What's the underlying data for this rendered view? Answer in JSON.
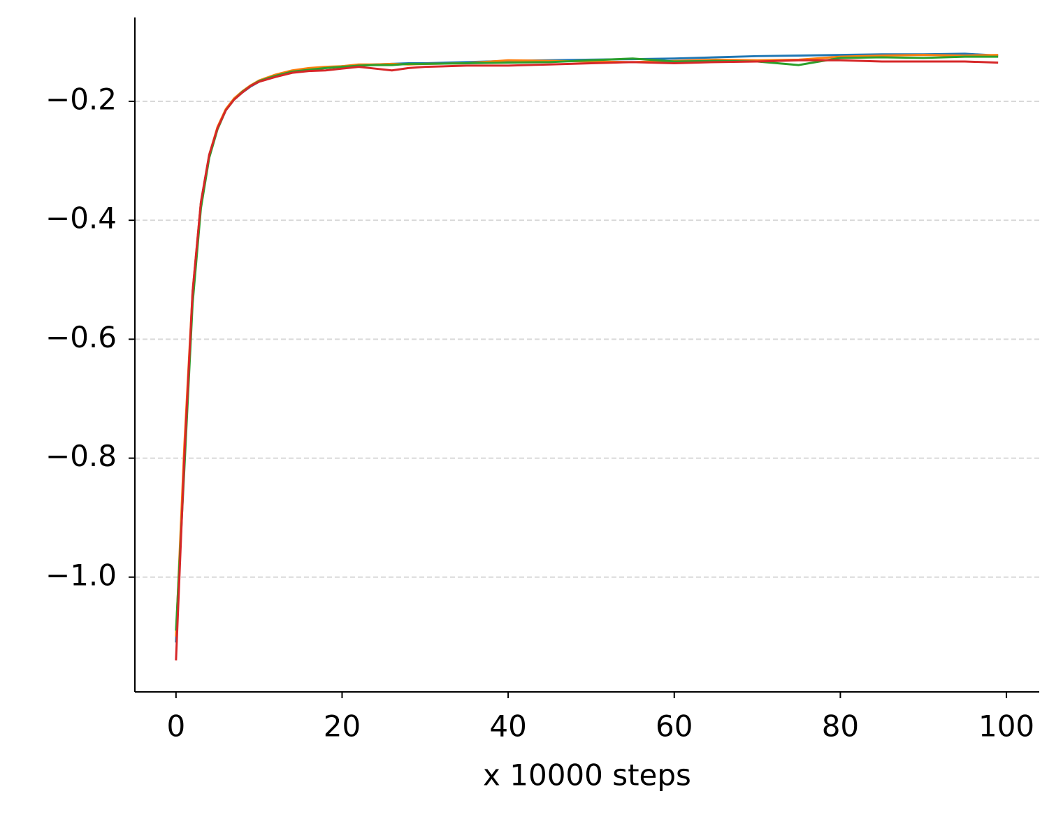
{
  "chart_data": {
    "type": "line",
    "xlabel": "x 10000 steps",
    "x": [
      0,
      1,
      2,
      3,
      4,
      5,
      6,
      7,
      8,
      9,
      10,
      12,
      14,
      16,
      18,
      20,
      22,
      24,
      26,
      28,
      30,
      35,
      40,
      45,
      50,
      55,
      60,
      65,
      70,
      75,
      80,
      85,
      90,
      95,
      99
    ],
    "series": [
      {
        "color": "#1f77b4",
        "values": [
          -1.11,
          -0.8,
          -0.53,
          -0.37,
          -0.29,
          -0.245,
          -0.215,
          -0.197,
          -0.185,
          -0.175,
          -0.167,
          -0.158,
          -0.151,
          -0.147,
          -0.144,
          -0.141,
          -0.139,
          -0.138,
          -0.137,
          -0.136,
          -0.136,
          -0.134,
          -0.132,
          -0.131,
          -0.13,
          -0.129,
          -0.128,
          -0.126,
          -0.124,
          -0.123,
          -0.122,
          -0.121,
          -0.121,
          -0.12,
          -0.123
        ]
      },
      {
        "color": "#ff7f0e",
        "values": [
          -1.1,
          -0.78,
          -0.52,
          -0.37,
          -0.29,
          -0.243,
          -0.213,
          -0.195,
          -0.183,
          -0.173,
          -0.165,
          -0.155,
          -0.148,
          -0.144,
          -0.142,
          -0.141,
          -0.138,
          -0.138,
          -0.137,
          -0.138,
          -0.137,
          -0.136,
          -0.131,
          -0.132,
          -0.133,
          -0.134,
          -0.132,
          -0.13,
          -0.131,
          -0.13,
          -0.125,
          -0.123,
          -0.122,
          -0.123,
          -0.122
        ]
      },
      {
        "color": "#2ca02c",
        "values": [
          -1.09,
          -0.82,
          -0.54,
          -0.38,
          -0.295,
          -0.247,
          -0.215,
          -0.197,
          -0.184,
          -0.174,
          -0.166,
          -0.157,
          -0.15,
          -0.147,
          -0.144,
          -0.142,
          -0.14,
          -0.139,
          -0.139,
          -0.137,
          -0.137,
          -0.136,
          -0.135,
          -0.134,
          -0.131,
          -0.128,
          -0.133,
          -0.132,
          -0.133,
          -0.139,
          -0.127,
          -0.126,
          -0.127,
          -0.125,
          -0.125
        ]
      },
      {
        "color": "#d62728",
        "values": [
          -1.14,
          -0.8,
          -0.52,
          -0.37,
          -0.29,
          -0.245,
          -0.215,
          -0.197,
          -0.185,
          -0.174,
          -0.167,
          -0.159,
          -0.152,
          -0.149,
          -0.148,
          -0.145,
          -0.142,
          -0.145,
          -0.148,
          -0.144,
          -0.142,
          -0.14,
          -0.14,
          -0.138,
          -0.136,
          -0.134,
          -0.136,
          -0.134,
          -0.133,
          -0.131,
          -0.131,
          -0.133,
          -0.133,
          -0.133,
          -0.135
        ]
      }
    ],
    "xlim": [
      -4.95,
      103.95
    ],
    "xticks": [
      0,
      20,
      40,
      60,
      80,
      100
    ],
    "ylim": [
      -1.193,
      -0.059
    ],
    "yticks": [
      {
        "value": -1.0,
        "label": "−1.0"
      },
      {
        "value": -0.8,
        "label": "−0.8"
      },
      {
        "value": -0.6,
        "label": "−0.6"
      },
      {
        "value": -0.4,
        "label": "−0.4"
      },
      {
        "value": -0.2,
        "label": "−0.2"
      }
    ],
    "grid": true
  }
}
